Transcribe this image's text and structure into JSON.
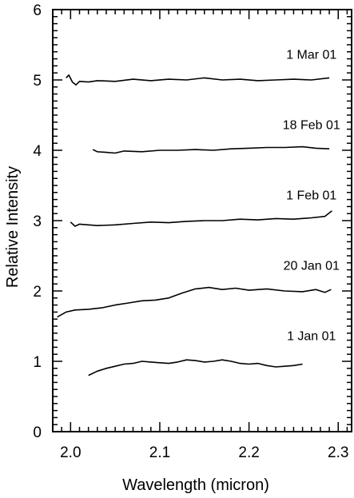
{
  "chart_data": {
    "type": "line",
    "title": "",
    "xlabel": "Wavelength (micron)",
    "ylabel": "Relative Intensity",
    "xlim": [
      1.98,
      2.315
    ],
    "ylim": [
      0,
      6
    ],
    "x_ticks": [
      2.0,
      2.1,
      2.2,
      2.3
    ],
    "x_tick_labels": [
      "2.0",
      "2.1",
      "2.2",
      "2.3"
    ],
    "y_ticks": [
      0,
      1,
      2,
      3,
      4,
      5,
      6
    ],
    "y_tick_labels": [
      "0",
      "1",
      "2",
      "3",
      "4",
      "5",
      "6"
    ],
    "grid": false,
    "legend": "none",
    "series": [
      {
        "name": "1 Mar 01",
        "x": [
          1.995,
          1.998,
          2.002,
          2.006,
          2.01,
          2.02,
          2.03,
          2.05,
          2.07,
          2.09,
          2.11,
          2.13,
          2.15,
          2.17,
          2.19,
          2.21,
          2.23,
          2.25,
          2.27,
          2.29
        ],
        "y": [
          5.03,
          5.07,
          4.97,
          4.93,
          4.98,
          4.97,
          4.99,
          4.98,
          5.01,
          4.99,
          5.01,
          5.0,
          5.03,
          5.0,
          5.01,
          4.99,
          5.0,
          5.01,
          5.0,
          5.03
        ]
      },
      {
        "name": "18 Feb 01",
        "x": [
          2.025,
          2.03,
          2.04,
          2.05,
          2.06,
          2.08,
          2.1,
          2.12,
          2.14,
          2.16,
          2.18,
          2.2,
          2.22,
          2.24,
          2.26,
          2.275,
          2.29
        ],
        "y": [
          4.01,
          3.98,
          3.97,
          3.96,
          3.99,
          3.98,
          4.0,
          4.0,
          4.01,
          4.0,
          4.02,
          4.03,
          4.04,
          4.04,
          4.05,
          4.03,
          4.02
        ]
      },
      {
        "name": "1 Feb 01",
        "x": [
          2.0,
          2.005,
          2.01,
          2.03,
          2.05,
          2.07,
          2.09,
          2.11,
          2.13,
          2.15,
          2.17,
          2.19,
          2.21,
          2.23,
          2.25,
          2.27,
          2.285,
          2.293
        ],
        "y": [
          2.98,
          2.92,
          2.95,
          2.93,
          2.94,
          2.96,
          2.98,
          2.97,
          2.99,
          3.0,
          3.0,
          3.02,
          3.01,
          3.03,
          3.02,
          3.04,
          3.06,
          3.14
        ]
      },
      {
        "name": "20 Jan 01",
        "x": [
          1.985,
          1.995,
          2.005,
          2.02,
          2.035,
          2.05,
          2.065,
          2.08,
          2.095,
          2.11,
          2.125,
          2.14,
          2.155,
          2.17,
          2.185,
          2.2,
          2.22,
          2.24,
          2.26,
          2.275,
          2.285,
          2.292
        ],
        "y": [
          1.63,
          1.7,
          1.73,
          1.74,
          1.76,
          1.8,
          1.83,
          1.86,
          1.87,
          1.9,
          1.97,
          2.03,
          2.05,
          2.02,
          2.04,
          2.01,
          2.03,
          2.0,
          1.99,
          2.02,
          1.98,
          2.02
        ]
      },
      {
        "name": "1 Jan 01",
        "x": [
          2.02,
          2.03,
          2.04,
          2.05,
          2.06,
          2.07,
          2.08,
          2.09,
          2.1,
          2.11,
          2.12,
          2.13,
          2.14,
          2.15,
          2.16,
          2.17,
          2.18,
          2.19,
          2.2,
          2.21,
          2.22,
          2.23,
          2.24,
          2.25,
          2.26
        ],
        "y": [
          0.8,
          0.86,
          0.9,
          0.93,
          0.96,
          0.97,
          1.0,
          0.99,
          0.98,
          0.97,
          0.99,
          1.02,
          1.01,
          0.99,
          1.0,
          1.02,
          1.0,
          0.97,
          0.96,
          0.97,
          0.94,
          0.92,
          0.93,
          0.94,
          0.96
        ]
      }
    ],
    "annotations": [
      {
        "text": "1 Mar 01",
        "x": 2.27,
        "y": 5.3
      },
      {
        "text": "18 Feb 01",
        "x": 2.27,
        "y": 4.3
      },
      {
        "text": "1 Feb 01",
        "x": 2.27,
        "y": 3.3
      },
      {
        "text": "20 Jan 01",
        "x": 2.27,
        "y": 2.3
      },
      {
        "text": "1 Jan 01",
        "x": 2.27,
        "y": 1.3
      }
    ]
  }
}
